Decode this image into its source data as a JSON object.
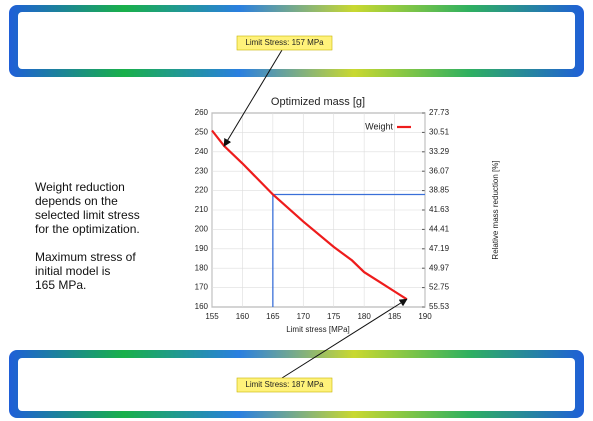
{
  "chart_data": {
    "type": "line",
    "title": "Optimized mass [g]",
    "x_label": "Limit stress [MPa]",
    "y2_label": "Relative mass reduction [%]",
    "x": [
      155,
      157,
      160,
      165,
      170,
      175,
      178,
      180,
      185,
      187
    ],
    "series": [
      {
        "name": "Weight",
        "color": "#ee1c1c",
        "values": [
          251,
          243,
          234,
          218,
          204,
          191,
          184,
          178,
          168,
          164
        ]
      }
    ],
    "xlim": [
      155,
      190
    ],
    "xticks": [
      155,
      160,
      165,
      170,
      175,
      180,
      185,
      190
    ],
    "ylim": [
      160,
      260
    ],
    "yticks": [
      160,
      170,
      180,
      190,
      200,
      210,
      220,
      230,
      240,
      250,
      260
    ],
    "y2lim": [
      55.53,
      27.73
    ],
    "y2ticks": [
      27.73,
      30.51,
      33.29,
      36.07,
      38.85,
      41.63,
      44.41,
      47.19,
      49.97,
      52.75,
      55.53
    ],
    "guide": {
      "x": 165,
      "y": 218,
      "color": "#3a6fd8"
    },
    "grid": true,
    "legend": "top-right",
    "annotations": [
      {
        "text": "Limit Stress: 157 MPa",
        "x": 157,
        "y": 243
      },
      {
        "text": "Limit Stress: 187 MPa",
        "x": 187,
        "y": 164
      }
    ]
  },
  "notes": [
    [
      "Weight reduction",
      "depends on the",
      "selected limit stress",
      "for the optimization."
    ],
    [
      "Maximum stress of",
      "initial model is",
      "165 MPa."
    ]
  ]
}
